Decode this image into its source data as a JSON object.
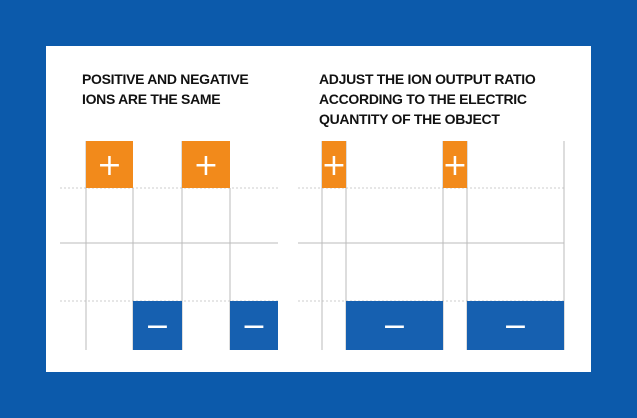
{
  "panels": [
    {
      "caption": "POSITIVE AND NEGATIVE\nIONS ARE THE SAME",
      "positive_symbol": "+",
      "negative_symbol": "−"
    },
    {
      "caption": "ADJUST THE ION OUTPUT RATIO\nACCORDING TO THE ELECTRIC\nQUANTITY OF THE OBJECT",
      "positive_symbol": "+",
      "negative_symbol": "−"
    }
  ],
  "colors": {
    "background": "#0c5aab",
    "card": "#ffffff",
    "positive": "#f28a1b",
    "negative": "#1660b0",
    "grid": "#cccccc"
  }
}
